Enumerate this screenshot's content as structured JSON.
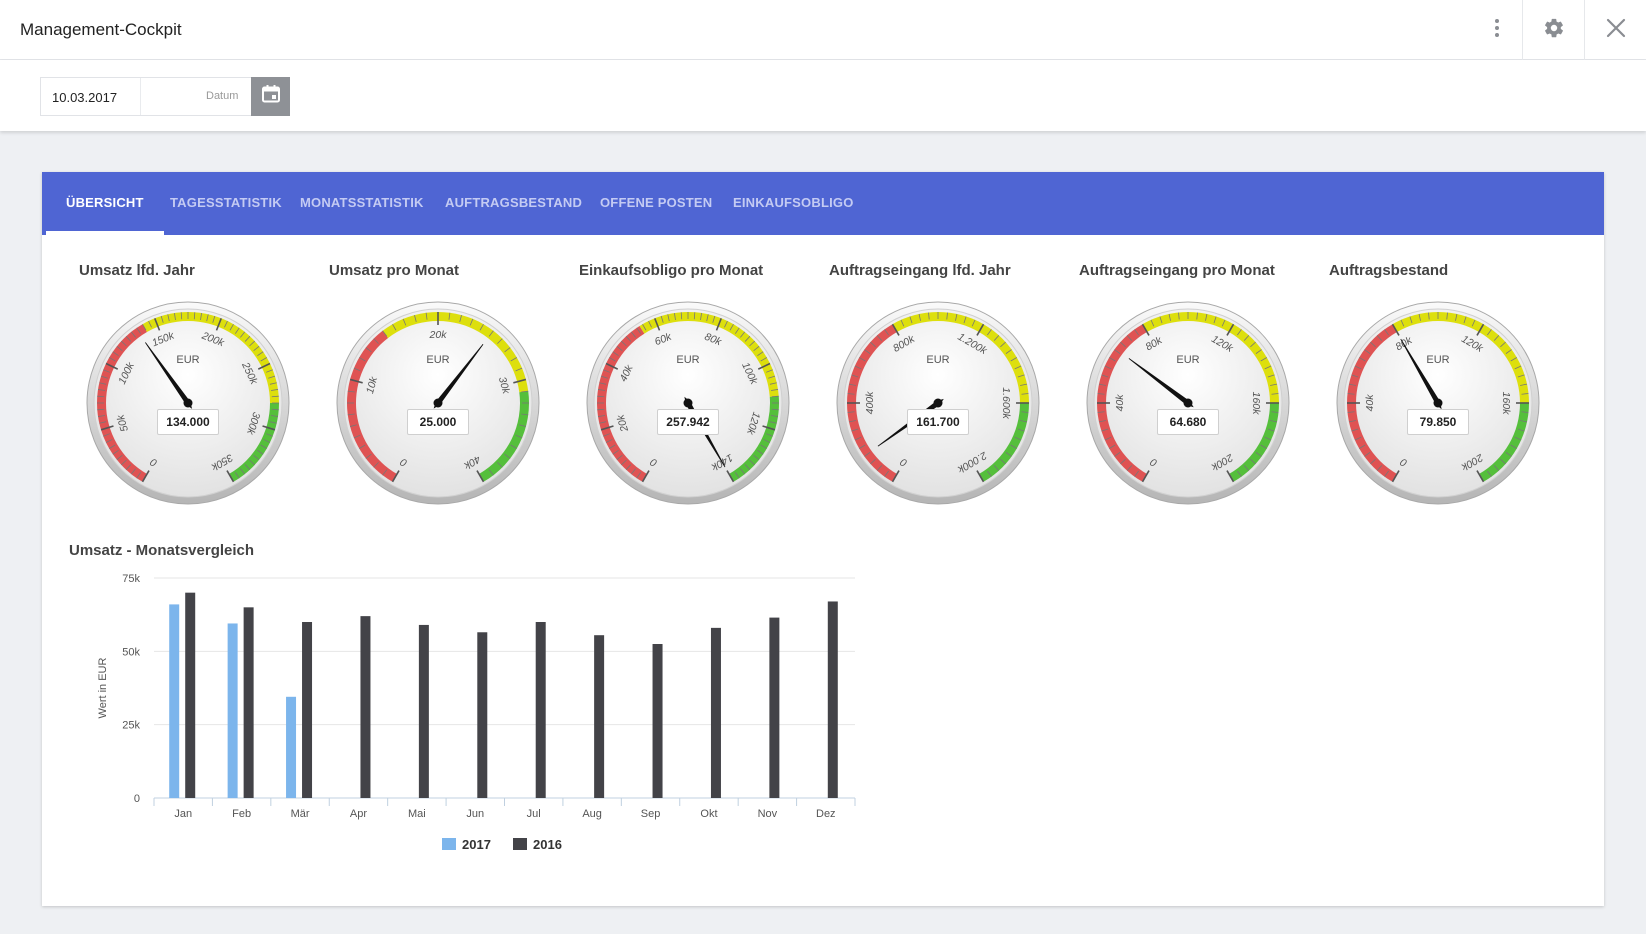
{
  "window": {
    "title": "Management-Cockpit"
  },
  "icons": {
    "more": "more-vertical-icon",
    "settings": "gear-icon",
    "close": "close-icon",
    "calendar": "calendar-icon"
  },
  "toolbar": {
    "date_value": "10.03.2017",
    "date_placeholder": "Datum"
  },
  "tabs": [
    "ÜBERSICHT",
    "TAGESSTATISTIK",
    "MONATSSTATISTIK",
    "AUFTRAGSBESTAND",
    "OFFENE POSTEN",
    "EINKAUFSOBLIGO"
  ],
  "active_tab": 0,
  "colors": {
    "tab_bar": "#4f65d3",
    "series_2017": "#7cb5ec",
    "series_2016": "#434348",
    "gauge_red": "#df5353",
    "gauge_yellow": "#dddf0d",
    "gauge_green": "#55bf3b"
  },
  "gauges": [
    {
      "title": "Umsatz lfd. Jahr",
      "unit": "EUR",
      "min": 0,
      "max": 350000,
      "value": 134000,
      "display": "134.000",
      "ticks": [
        "0",
        "50k",
        "100k",
        "150k",
        "200k",
        "250k",
        "300k",
        "350k"
      ],
      "bands": [
        [
          0,
          140000,
          "red"
        ],
        [
          140000,
          280000,
          "yellow"
        ],
        [
          280000,
          350000,
          "green"
        ]
      ]
    },
    {
      "title": "Umsatz pro Monat",
      "unit": "EUR",
      "min": 0,
      "max": 40000,
      "value": 25000,
      "display": "25.000",
      "ticks": [
        "0",
        "10k",
        "20k",
        "30k",
        "40k"
      ],
      "bands": [
        [
          0,
          15000,
          "red"
        ],
        [
          15000,
          31000,
          "yellow"
        ],
        [
          31000,
          40000,
          "green"
        ]
      ]
    },
    {
      "title": "Einkaufsobligo pro Monat",
      "unit": "EUR",
      "min": 0,
      "max": 140000,
      "value": 257942,
      "display": "257.942",
      "ticks": [
        "0",
        "20k",
        "40k",
        "60k",
        "80k",
        "100k",
        "120k",
        "140k"
      ],
      "bands": [
        [
          0,
          55000,
          "red"
        ],
        [
          55000,
          110000,
          "yellow"
        ],
        [
          110000,
          140000,
          "green"
        ]
      ]
    },
    {
      "title": "Auftragseingang lfd. Jahr",
      "unit": "EUR",
      "min": 0,
      "max": 2000000,
      "value": 161700,
      "display": "161.700",
      "ticks": [
        "0",
        "400k",
        "800k",
        "1.200k",
        "1.600k",
        "2.000k"
      ],
      "bands": [
        [
          0,
          800000,
          "red"
        ],
        [
          800000,
          1600000,
          "yellow"
        ],
        [
          1600000,
          2000000,
          "green"
        ]
      ]
    },
    {
      "title": "Auftragseingang pro Monat",
      "unit": "EUR",
      "min": 0,
      "max": 200000,
      "value": 64680,
      "display": "64.680",
      "ticks": [
        "0",
        "40k",
        "80k",
        "120k",
        "160k",
        "200k"
      ],
      "bands": [
        [
          0,
          80000,
          "red"
        ],
        [
          80000,
          160000,
          "yellow"
        ],
        [
          160000,
          200000,
          "green"
        ]
      ]
    },
    {
      "title": "Auftragsbestand",
      "unit": "EUR",
      "min": 0,
      "max": 200000,
      "value": 79850,
      "display": "79.850",
      "ticks": [
        "0",
        "40k",
        "80k",
        "120k",
        "160k",
        "200k"
      ],
      "bands": [
        [
          0,
          80000,
          "red"
        ],
        [
          80000,
          160000,
          "yellow"
        ],
        [
          160000,
          200000,
          "green"
        ]
      ]
    }
  ],
  "chart_data": {
    "type": "bar",
    "title": "Umsatz - Monatsvergleich",
    "xlabel": "",
    "ylabel": "Wert in EUR",
    "categories": [
      "Jan",
      "Feb",
      "Mär",
      "Apr",
      "Mai",
      "Jun",
      "Jul",
      "Aug",
      "Sep",
      "Okt",
      "Nov",
      "Dez"
    ],
    "ylim": [
      0,
      75000
    ],
    "yticks": [
      0,
      25000,
      50000,
      75000
    ],
    "ytick_labels": [
      "0",
      "25k",
      "50k",
      "75k"
    ],
    "grid": true,
    "legend": "bottom-center",
    "series": [
      {
        "name": "2017",
        "values": [
          66000,
          59500,
          34500,
          null,
          null,
          null,
          null,
          null,
          null,
          null,
          null,
          null
        ]
      },
      {
        "name": "2016",
        "values": [
          70000,
          65000,
          60000,
          62000,
          59000,
          56500,
          60000,
          55500,
          52500,
          58000,
          61500,
          67000
        ]
      }
    ]
  }
}
